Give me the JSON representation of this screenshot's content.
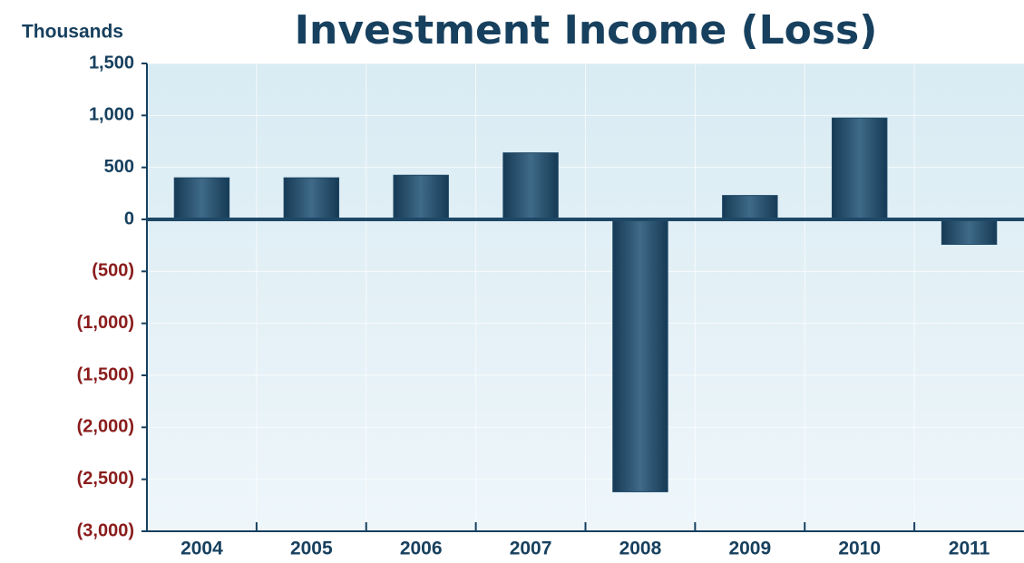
{
  "chart_data": {
    "type": "bar",
    "title": "Investment Income (Loss)",
    "y_label": "Thousands",
    "categories": [
      "2004",
      "2005",
      "2006",
      "2007",
      "2008",
      "2009",
      "2010",
      "2011"
    ],
    "values": [
      400,
      400,
      425,
      640,
      -2620,
      230,
      975,
      -240
    ],
    "color": "#1e4866",
    "ylim": [
      -3000,
      1500
    ],
    "yticks": [
      {
        "value": -3000,
        "label": "(3,000)"
      },
      {
        "value": -2500,
        "label": "(2,500)"
      },
      {
        "value": -2000,
        "label": "(2,000)"
      },
      {
        "value": -1500,
        "label": "(1,500)"
      },
      {
        "value": -1000,
        "label": "(1,000)"
      },
      {
        "value": -500,
        "label": "(500)"
      },
      0,
      500,
      {
        "value": 1000,
        "label": "1,000"
      },
      {
        "value": 1500,
        "label": "1,500"
      }
    ],
    "tick_color": "#17405e",
    "negative_tick_color": "#8a1c1c",
    "grid": true
  }
}
